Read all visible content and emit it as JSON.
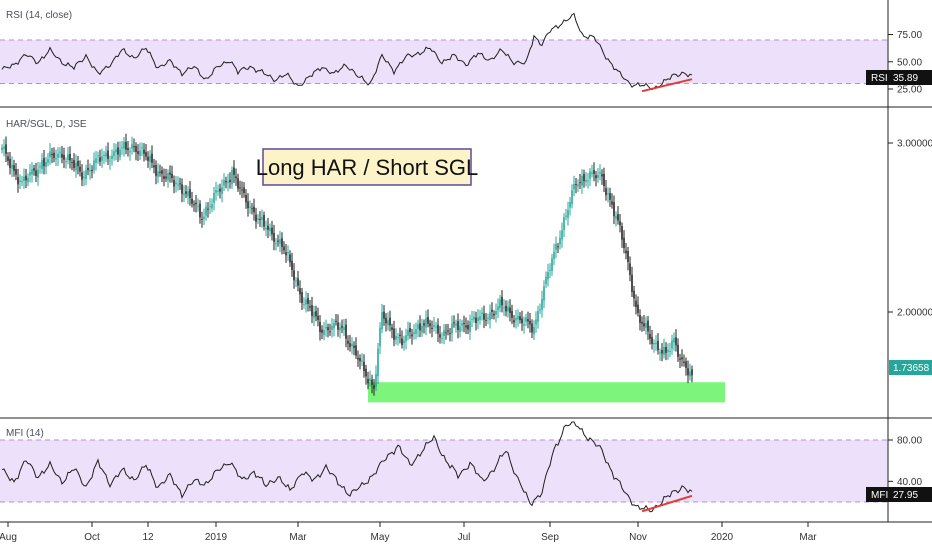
{
  "chart_data": {
    "type": "candlestick",
    "colors": {
      "up": "#26a69a",
      "down": "#222222",
      "band_fill": "#ede0fb",
      "band_line": "#b58edb",
      "divergence": "#e53935",
      "support_zone": "#7df57d",
      "pane_line": "#222222",
      "annotation_bg": "#fdf3c8",
      "annotation_border": "#5a4a9e"
    },
    "price_pane": {
      "title": "HAR/SGL, D, JSE",
      "scale": "log",
      "y_ticks": [
        "3.00000",
        "2.00000"
      ],
      "y_tick_values": [
        3.0,
        2.0
      ],
      "last_value_label": "1.73658",
      "last_value": 1.73658,
      "annotation": "Long HAR / Short SGL",
      "support_zone": {
        "from": 1.61,
        "to": 1.69
      },
      "anchors": [
        [
          0,
          2.95
        ],
        [
          10,
          2.72
        ],
        [
          20,
          2.86
        ],
        [
          30,
          2.93
        ],
        [
          40,
          2.78
        ],
        [
          50,
          2.9
        ],
        [
          60,
          2.95
        ],
        [
          66,
          2.98
        ],
        [
          72,
          2.9
        ],
        [
          80,
          2.78
        ],
        [
          90,
          2.7
        ],
        [
          96,
          2.58
        ],
        [
          100,
          2.52
        ],
        [
          110,
          2.7
        ],
        [
          115,
          2.8
        ],
        [
          120,
          2.65
        ],
        [
          130,
          2.47
        ],
        [
          140,
          2.35
        ],
        [
          150,
          2.07
        ],
        [
          160,
          1.92
        ],
        [
          170,
          1.93
        ],
        [
          180,
          1.75
        ],
        [
          186,
          1.67
        ],
        [
          190,
          1.98
        ],
        [
          200,
          1.86
        ],
        [
          210,
          1.95
        ],
        [
          220,
          1.9
        ],
        [
          230,
          1.94
        ],
        [
          240,
          1.97
        ],
        [
          250,
          2.03
        ],
        [
          260,
          1.95
        ],
        [
          266,
          1.93
        ],
        [
          272,
          2.15
        ],
        [
          280,
          2.45
        ],
        [
          287,
          2.72
        ],
        [
          293,
          2.78
        ],
        [
          300,
          2.76
        ],
        [
          306,
          2.55
        ],
        [
          312,
          2.3
        ],
        [
          318,
          1.97
        ],
        [
          326,
          1.86
        ],
        [
          332,
          1.8
        ],
        [
          336,
          1.87
        ],
        [
          340,
          1.78
        ],
        [
          345,
          1.7
        ]
      ]
    },
    "rsi_pane": {
      "title": "RSI (14, close)",
      "y_ticks": [
        "75.00",
        "50.00",
        "25.00"
      ],
      "y_tick_values": [
        75,
        50,
        25
      ],
      "band": [
        30,
        70
      ],
      "last_value_label": "35.89",
      "tag": "RSI",
      "last_value": 35.89,
      "anchors": [
        [
          0,
          42
        ],
        [
          6,
          48
        ],
        [
          12,
          56
        ],
        [
          18,
          50
        ],
        [
          24,
          60
        ],
        [
          30,
          50
        ],
        [
          36,
          44
        ],
        [
          42,
          56
        ],
        [
          48,
          38
        ],
        [
          54,
          48
        ],
        [
          60,
          60
        ],
        [
          66,
          54
        ],
        [
          72,
          62
        ],
        [
          78,
          45
        ],
        [
          84,
          50
        ],
        [
          90,
          40
        ],
        [
          96,
          45
        ],
        [
          102,
          34
        ],
        [
          108,
          45
        ],
        [
          114,
          52
        ],
        [
          118,
          40
        ],
        [
          124,
          46
        ],
        [
          130,
          40
        ],
        [
          136,
          34
        ],
        [
          142,
          38
        ],
        [
          148,
          28
        ],
        [
          154,
          36
        ],
        [
          160,
          46
        ],
        [
          166,
          38
        ],
        [
          172,
          48
        ],
        [
          178,
          36
        ],
        [
          184,
          30
        ],
        [
          190,
          55
        ],
        [
          196,
          42
        ],
        [
          202,
          54
        ],
        [
          208,
          58
        ],
        [
          214,
          62
        ],
        [
          220,
          50
        ],
        [
          226,
          55
        ],
        [
          232,
          48
        ],
        [
          238,
          57
        ],
        [
          244,
          52
        ],
        [
          250,
          60
        ],
        [
          256,
          50
        ],
        [
          262,
          48
        ],
        [
          266,
          74
        ],
        [
          270,
          66
        ],
        [
          274,
          78
        ],
        [
          280,
          86
        ],
        [
          286,
          92
        ],
        [
          290,
          75
        ],
        [
          296,
          72
        ],
        [
          302,
          55
        ],
        [
          308,
          40
        ],
        [
          314,
          30
        ],
        [
          320,
          28
        ],
        [
          326,
          26
        ],
        [
          332,
          32
        ],
        [
          336,
          38
        ],
        [
          340,
          40
        ],
        [
          345,
          36
        ]
      ],
      "divergence": [
        [
          320,
          23
        ],
        [
          345,
          34
        ]
      ]
    },
    "mfi_pane": {
      "title": "MFI (14)",
      "y_ticks": [
        "80.00",
        "40.00"
      ],
      "y_tick_values": [
        80,
        40
      ],
      "band": [
        20,
        80
      ],
      "last_value_label": "27.95",
      "tag": "MFI",
      "last_value": 27.95,
      "anchors": [
        [
          0,
          50
        ],
        [
          6,
          40
        ],
        [
          12,
          60
        ],
        [
          18,
          45
        ],
        [
          24,
          55
        ],
        [
          30,
          40
        ],
        [
          36,
          52
        ],
        [
          42,
          35
        ],
        [
          48,
          58
        ],
        [
          54,
          38
        ],
        [
          60,
          50
        ],
        [
          66,
          42
        ],
        [
          72,
          55
        ],
        [
          78,
          35
        ],
        [
          84,
          45
        ],
        [
          90,
          28
        ],
        [
          96,
          40
        ],
        [
          102,
          38
        ],
        [
          108,
          50
        ],
        [
          114,
          60
        ],
        [
          120,
          40
        ],
        [
          126,
          50
        ],
        [
          132,
          35
        ],
        [
          138,
          45
        ],
        [
          144,
          30
        ],
        [
          150,
          50
        ],
        [
          156,
          40
        ],
        [
          162,
          55
        ],
        [
          168,
          38
        ],
        [
          174,
          28
        ],
        [
          180,
          35
        ],
        [
          186,
          48
        ],
        [
          192,
          62
        ],
        [
          198,
          75
        ],
        [
          204,
          55
        ],
        [
          210,
          70
        ],
        [
          216,
          82
        ],
        [
          222,
          60
        ],
        [
          228,
          45
        ],
        [
          234,
          58
        ],
        [
          240,
          40
        ],
        [
          246,
          52
        ],
        [
          252,
          70
        ],
        [
          258,
          42
        ],
        [
          264,
          18
        ],
        [
          270,
          30
        ],
        [
          276,
          70
        ],
        [
          282,
          95
        ],
        [
          288,
          94
        ],
        [
          294,
          80
        ],
        [
          300,
          70
        ],
        [
          306,
          45
        ],
        [
          312,
          28
        ],
        [
          318,
          14
        ],
        [
          324,
          12
        ],
        [
          330,
          20
        ],
        [
          336,
          30
        ],
        [
          340,
          35
        ],
        [
          345,
          28
        ]
      ],
      "divergence": [
        [
          320,
          11
        ],
        [
          345,
          26
        ]
      ]
    },
    "x_ticks": [
      {
        "label": "Aug",
        "i": 3
      },
      {
        "label": "Oct",
        "i": 45
      },
      {
        "label": "12",
        "i": 73
      },
      {
        "label": "2019",
        "i": 107
      },
      {
        "label": "Mar",
        "i": 148
      },
      {
        "label": "May",
        "i": 189
      },
      {
        "label": "Jul",
        "i": 231
      },
      {
        "label": "Sep",
        "i": 274
      },
      {
        "label": "Nov",
        "i": 318
      },
      {
        "label": "2020",
        "i": 360
      },
      {
        "label": "Mar",
        "i": 403
      }
    ]
  }
}
